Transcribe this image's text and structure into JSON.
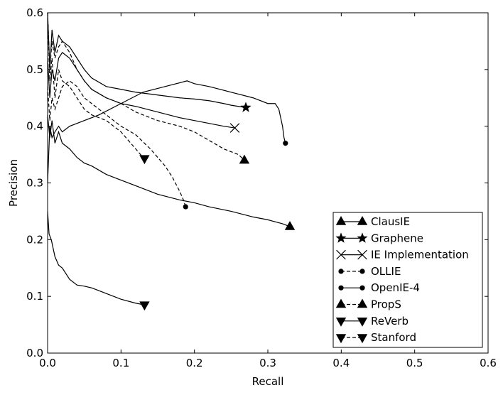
{
  "chart_data": {
    "type": "line",
    "title": "",
    "xlabel": "Recall",
    "ylabel": "Precision",
    "xlim": [
      0.0,
      0.6
    ],
    "ylim": [
      0.0,
      0.6
    ],
    "xticks": [
      "0.0",
      "0.1",
      "0.2",
      "0.3",
      "0.4",
      "0.5",
      "0.6"
    ],
    "yticks": [
      "0.0",
      "0.1",
      "0.2",
      "0.3",
      "0.4",
      "0.5",
      "0.6"
    ],
    "grid": false,
    "legend_position": "lower-right",
    "series": [
      {
        "name": "ClausIE",
        "marker": "triangle-up",
        "dash": "solid",
        "x": [
          0.0,
          0.003,
          0.006,
          0.01,
          0.015,
          0.02,
          0.03,
          0.04,
          0.05,
          0.06,
          0.08,
          0.1,
          0.12,
          0.15,
          0.18,
          0.2,
          0.22,
          0.25,
          0.28,
          0.3,
          0.32,
          0.33
        ],
        "y": [
          0.42,
          0.38,
          0.41,
          0.37,
          0.39,
          0.37,
          0.36,
          0.345,
          0.335,
          0.33,
          0.315,
          0.305,
          0.295,
          0.28,
          0.27,
          0.265,
          0.258,
          0.25,
          0.24,
          0.235,
          0.228,
          0.223
        ]
      },
      {
        "name": "Graphene",
        "marker": "star",
        "dash": "solid",
        "x": [
          0.0,
          0.003,
          0.006,
          0.01,
          0.015,
          0.02,
          0.03,
          0.04,
          0.05,
          0.06,
          0.08,
          0.1,
          0.12,
          0.15,
          0.18,
          0.2,
          0.22,
          0.24,
          0.25,
          0.26,
          0.27
        ],
        "y": [
          0.6,
          0.5,
          0.57,
          0.53,
          0.56,
          0.55,
          0.54,
          0.52,
          0.5,
          0.485,
          0.47,
          0.465,
          0.46,
          0.455,
          0.45,
          0.448,
          0.445,
          0.44,
          0.437,
          0.435,
          0.433
        ]
      },
      {
        "name": "IE Implementation",
        "marker": "x",
        "dash": "solid",
        "x": [
          0.0,
          0.003,
          0.006,
          0.01,
          0.015,
          0.02,
          0.03,
          0.04,
          0.05,
          0.06,
          0.08,
          0.1,
          0.12,
          0.15,
          0.18,
          0.2,
          0.22,
          0.24,
          0.255
        ],
        "y": [
          0.52,
          0.45,
          0.5,
          0.48,
          0.52,
          0.53,
          0.52,
          0.5,
          0.48,
          0.465,
          0.45,
          0.44,
          0.435,
          0.425,
          0.415,
          0.41,
          0.405,
          0.4,
          0.397
        ]
      },
      {
        "name": "OLLIE",
        "marker": "circle",
        "dash": "dashed",
        "x": [
          0.0,
          0.003,
          0.006,
          0.01,
          0.015,
          0.02,
          0.03,
          0.04,
          0.05,
          0.06,
          0.08,
          0.1,
          0.12,
          0.14,
          0.16,
          0.17,
          0.18,
          0.185,
          0.188
        ],
        "y": [
          0.47,
          0.41,
          0.45,
          0.43,
          0.45,
          0.47,
          0.48,
          0.47,
          0.45,
          0.44,
          0.42,
          0.4,
          0.385,
          0.36,
          0.33,
          0.31,
          0.285,
          0.27,
          0.258
        ]
      },
      {
        "name": "OpenIE-4",
        "marker": "circle",
        "dash": "solid",
        "x": [
          0.0,
          0.003,
          0.006,
          0.01,
          0.015,
          0.02,
          0.03,
          0.05,
          0.07,
          0.1,
          0.13,
          0.16,
          0.19,
          0.2,
          0.22,
          0.25,
          0.28,
          0.3,
          0.31,
          0.315,
          0.32,
          0.322,
          0.324
        ],
        "y": [
          0.3,
          0.4,
          0.38,
          0.39,
          0.4,
          0.39,
          0.4,
          0.41,
          0.42,
          0.44,
          0.46,
          0.47,
          0.48,
          0.475,
          0.47,
          0.46,
          0.45,
          0.44,
          0.44,
          0.43,
          0.4,
          0.38,
          0.37
        ]
      },
      {
        "name": "PropS",
        "marker": "triangle-up",
        "dash": "dashed",
        "x": [
          0.0,
          0.003,
          0.006,
          0.01,
          0.015,
          0.02,
          0.03,
          0.04,
          0.05,
          0.06,
          0.08,
          0.1,
          0.12,
          0.15,
          0.18,
          0.2,
          0.22,
          0.24,
          0.26,
          0.268
        ],
        "y": [
          0.6,
          0.5,
          0.55,
          0.52,
          0.54,
          0.55,
          0.53,
          0.5,
          0.48,
          0.465,
          0.45,
          0.44,
          0.425,
          0.41,
          0.4,
          0.39,
          0.375,
          0.36,
          0.35,
          0.34
        ]
      },
      {
        "name": "ReVerb",
        "marker": "triangle-down",
        "dash": "solid",
        "x": [
          0.0,
          0.002,
          0.005,
          0.01,
          0.015,
          0.02,
          0.03,
          0.04,
          0.05,
          0.06,
          0.08,
          0.1,
          0.12,
          0.132
        ],
        "y": [
          0.25,
          0.21,
          0.2,
          0.17,
          0.155,
          0.15,
          0.13,
          0.12,
          0.118,
          0.115,
          0.105,
          0.095,
          0.088,
          0.085
        ]
      },
      {
        "name": "Stanford",
        "marker": "triangle-down",
        "dash": "dashed",
        "x": [
          0.0,
          0.003,
          0.006,
          0.01,
          0.015,
          0.02,
          0.03,
          0.04,
          0.05,
          0.06,
          0.07,
          0.08,
          0.09,
          0.1,
          0.11,
          0.12,
          0.13,
          0.132
        ],
        "y": [
          0.6,
          0.48,
          0.52,
          0.45,
          0.5,
          0.48,
          0.47,
          0.45,
          0.43,
          0.42,
          0.415,
          0.41,
          0.4,
          0.39,
          0.375,
          0.36,
          0.345,
          0.343
        ]
      }
    ]
  }
}
